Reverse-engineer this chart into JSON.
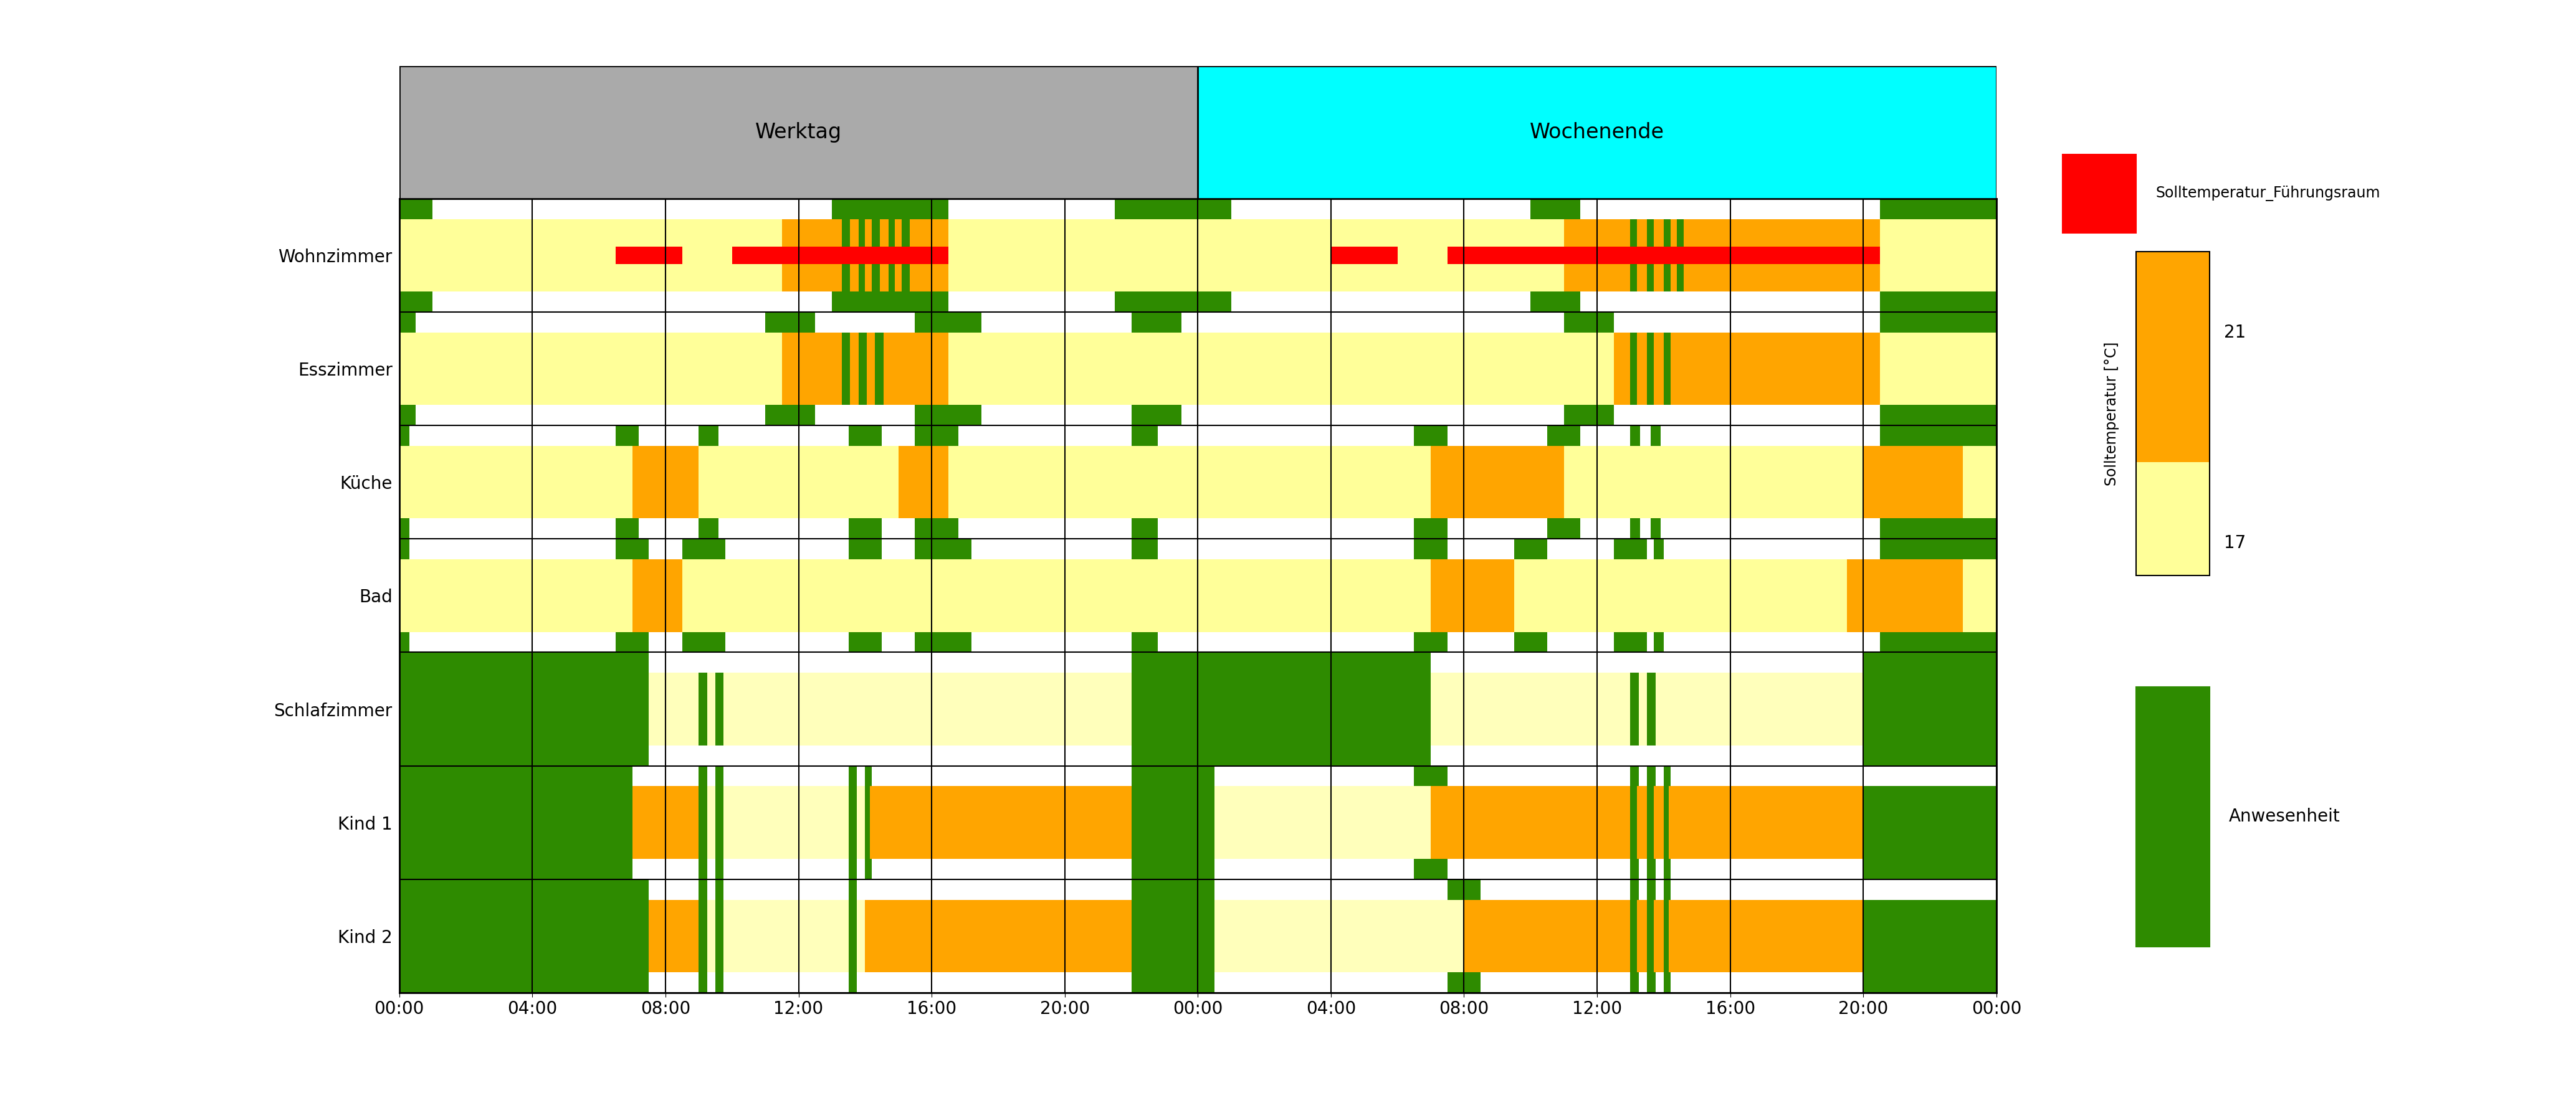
{
  "rooms": [
    "Wohnzimmer",
    "Esszimmer",
    "Küche",
    "Bad",
    "Schlafzimmer",
    "Kind 1",
    "Kind 2"
  ],
  "total_hours": 48,
  "colors": {
    "yellow": "#FFFF99",
    "orange": "#FFA500",
    "green": "#2E8B00",
    "red": "#FF0000",
    "white": "#FFFFFF",
    "light_yellow": "#FFFFBB",
    "werktag_bg": "#AAAAAA",
    "wochenende_bg": "#00FFFF"
  },
  "tick_hours": [
    0,
    4,
    8,
    12,
    16,
    20,
    24,
    28,
    32,
    36,
    40,
    44,
    48
  ],
  "tick_labels": [
    "00:00",
    "04:00",
    "08:00",
    "12:00",
    "16:00",
    "20:00",
    "00:00",
    "04:00",
    "08:00",
    "12:00",
    "16:00",
    "20:00",
    "00:00"
  ],
  "legend_temp_label": "Solltemperatur [°C]",
  "legend_fuehrung_label": "Solltemperatur_Führungsraum",
  "legend_anwesenheit_label": "Anwesenheit",
  "werktag_label": "Werktag",
  "wochenende_label": "Wochenende"
}
